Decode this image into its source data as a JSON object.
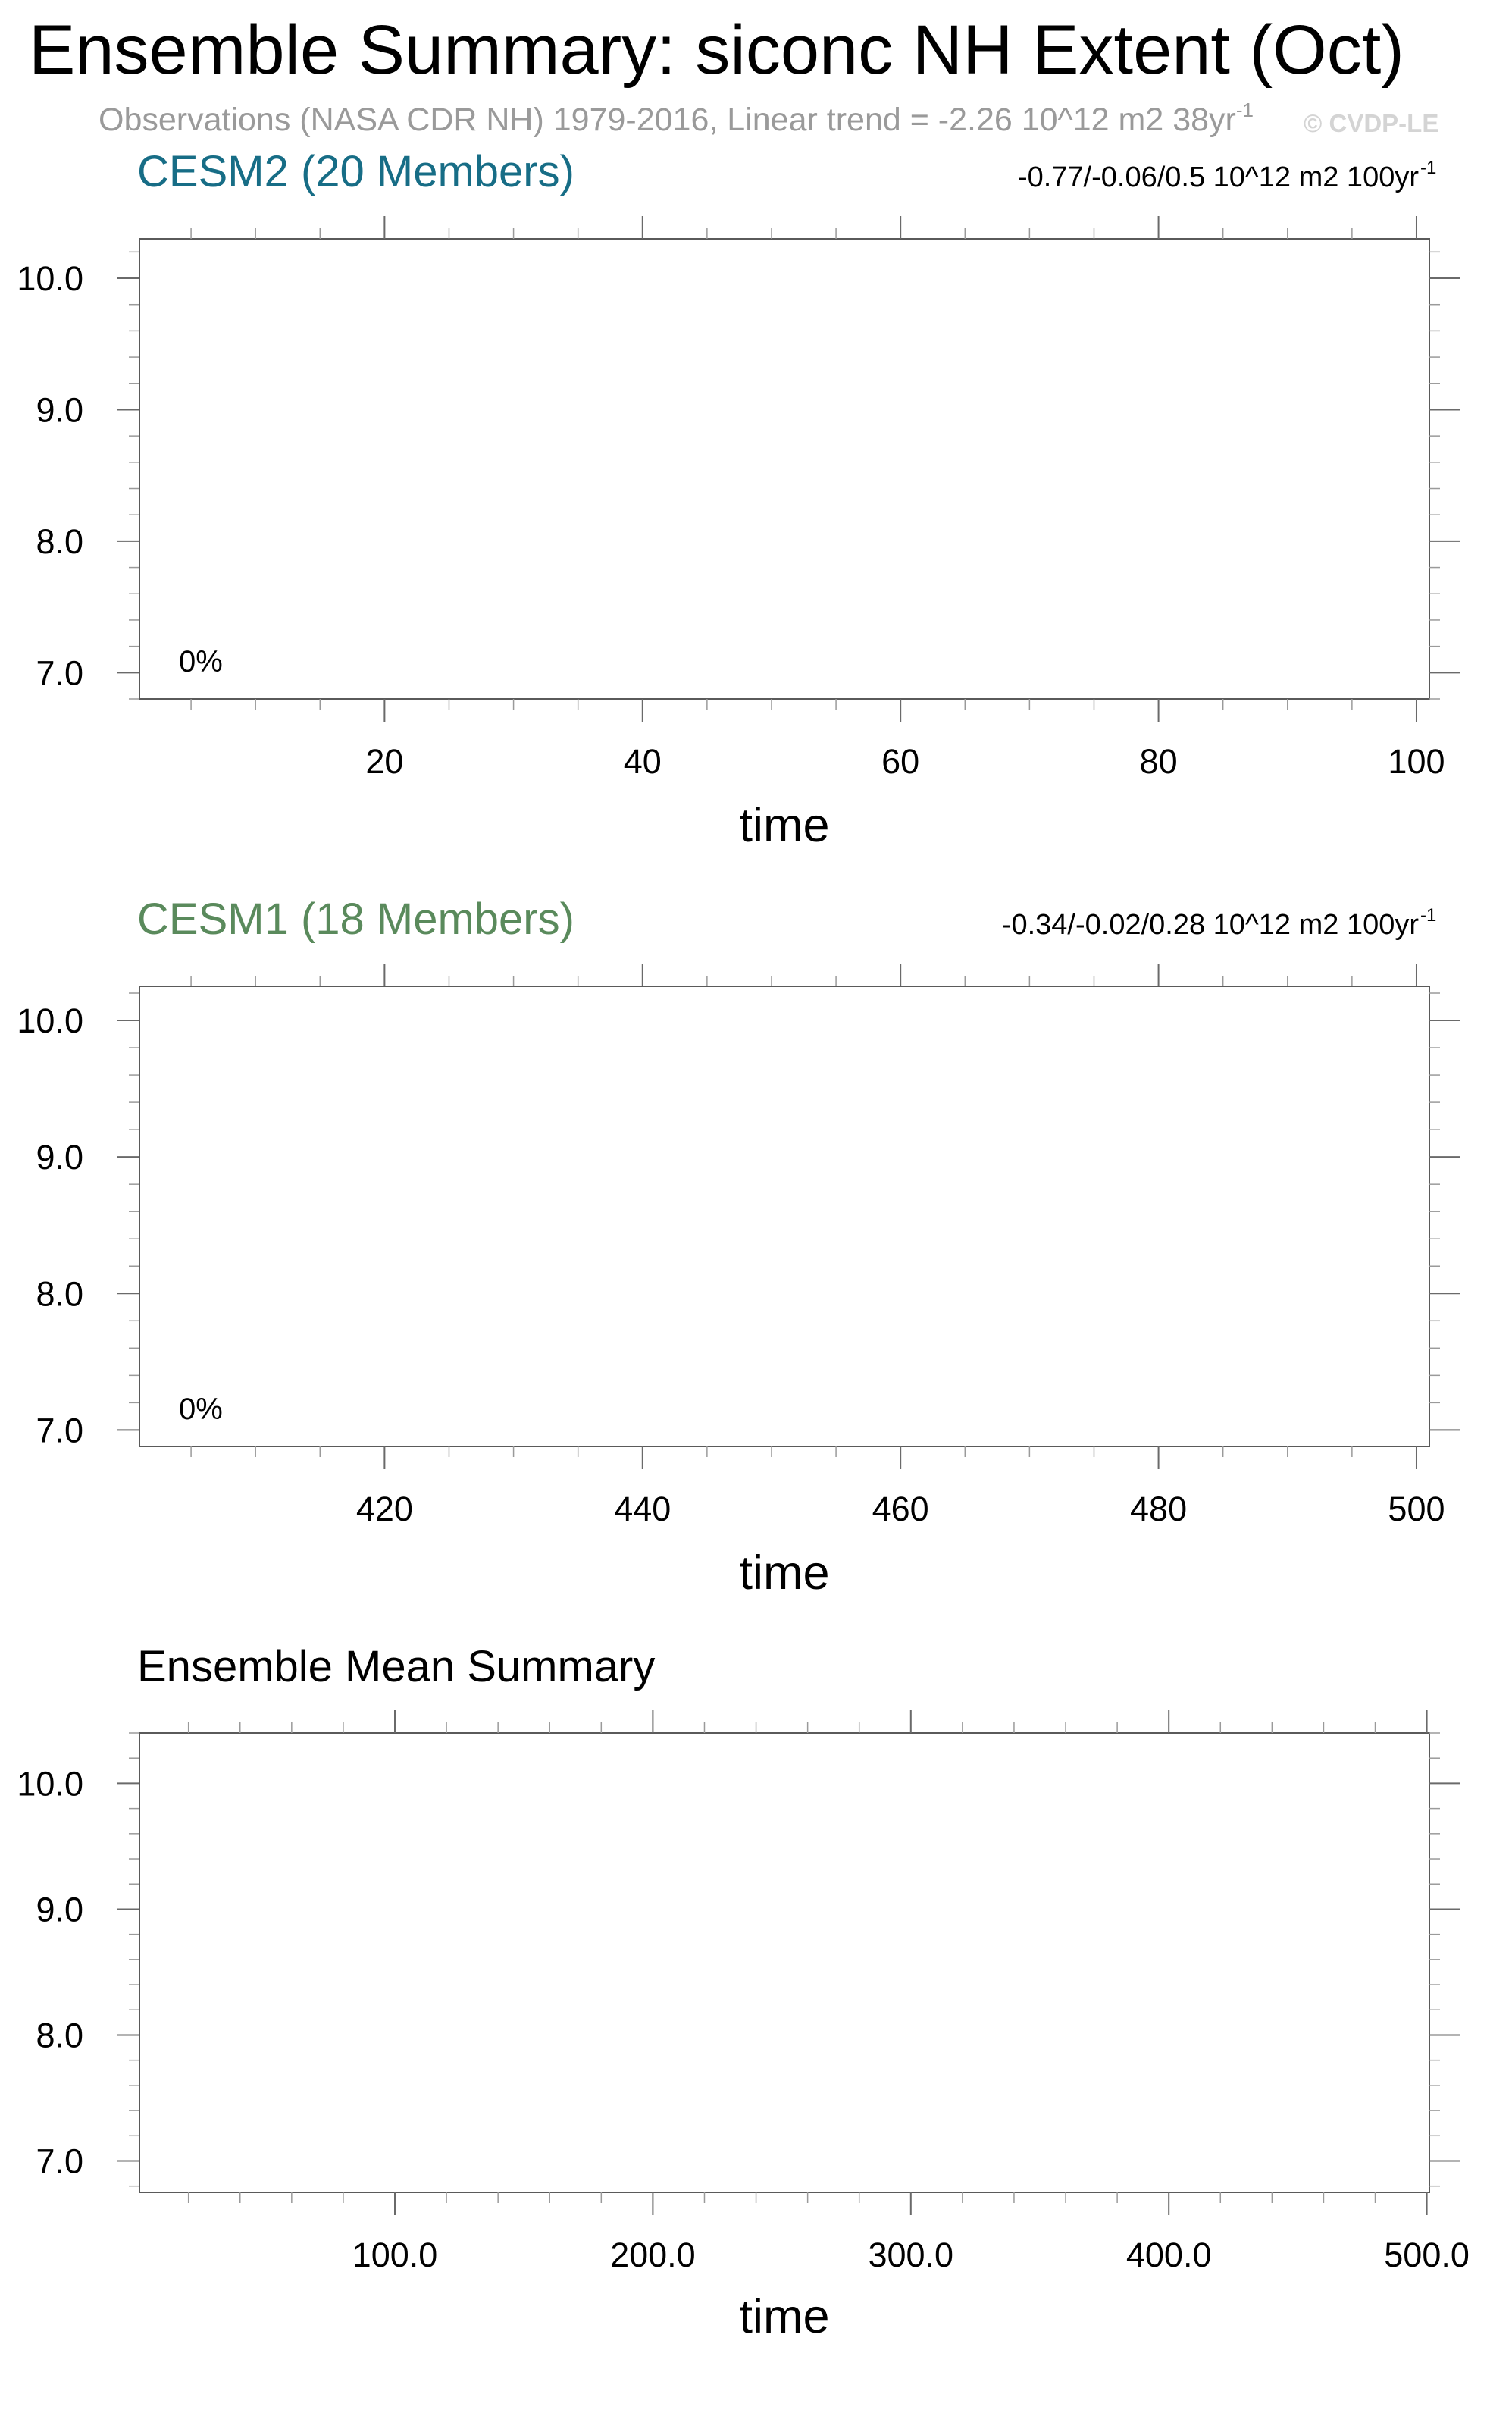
{
  "title": "Ensemble Summary: siconc NH Extent (Oct)",
  "observations": {
    "text": "Observations (NASA CDR NH) 1979-2016, Linear trend = -2.26 10^12 m2 38yr",
    "sup": "-1"
  },
  "watermark": "© CVDP-LE",
  "colors": {
    "cesm2": "#176d86",
    "cesm1": "#5a8a5c",
    "ensemble": "#000000"
  },
  "chart_data": [
    {
      "type": "line",
      "title": "CESM2 (20 Members)",
      "trend_text": "-0.77/-0.06/0.5 10^12 m2 100yr",
      "trend_sup": "-1",
      "percent_label": "0%",
      "xlabel": "time",
      "ylabel": "",
      "xlim": [
        1,
        101
      ],
      "ylim": [
        6.8,
        10.3
      ],
      "xticks": [
        20,
        40,
        60,
        80,
        100
      ],
      "xtick_labels": [
        "20",
        "40",
        "60",
        "80",
        "100"
      ],
      "xminor_step": 5,
      "yticks": [
        7,
        8,
        9,
        10
      ],
      "ytick_labels": [
        "7.0",
        "8.0",
        "9.0",
        "10.0"
      ],
      "yminor_step": 0.2,
      "series": []
    },
    {
      "type": "line",
      "title": "CESM1 (18 Members)",
      "trend_text": "-0.34/-0.02/0.28 10^12 m2 100yr",
      "trend_sup": "-1",
      "percent_label": "0%",
      "xlabel": "time",
      "ylabel": "",
      "xlim": [
        401,
        501
      ],
      "ylim": [
        6.88,
        10.25
      ],
      "xticks": [
        420,
        440,
        460,
        480,
        500
      ],
      "xtick_labels": [
        "420",
        "440",
        "460",
        "480",
        "500"
      ],
      "xminor_step": 5,
      "yticks": [
        7,
        8,
        9,
        10
      ],
      "ytick_labels": [
        "7.0",
        "8.0",
        "9.0",
        "10.0"
      ],
      "yminor_step": 0.2,
      "series": []
    },
    {
      "type": "line",
      "title": "Ensemble Mean Summary",
      "trend_text": "",
      "trend_sup": "",
      "percent_label": "",
      "xlabel": "time",
      "ylabel": "",
      "xlim": [
        1,
        501
      ],
      "ylim": [
        6.75,
        10.4
      ],
      "xticks": [
        100,
        200,
        300,
        400,
        500
      ],
      "xtick_labels": [
        "100.0",
        "200.0",
        "300.0",
        "400.0",
        "500.0"
      ],
      "xminor_step": 20,
      "yticks": [
        7,
        8,
        9,
        10
      ],
      "ytick_labels": [
        "7.0",
        "8.0",
        "9.0",
        "10.0"
      ],
      "yminor_step": 0.2,
      "series": []
    }
  ]
}
